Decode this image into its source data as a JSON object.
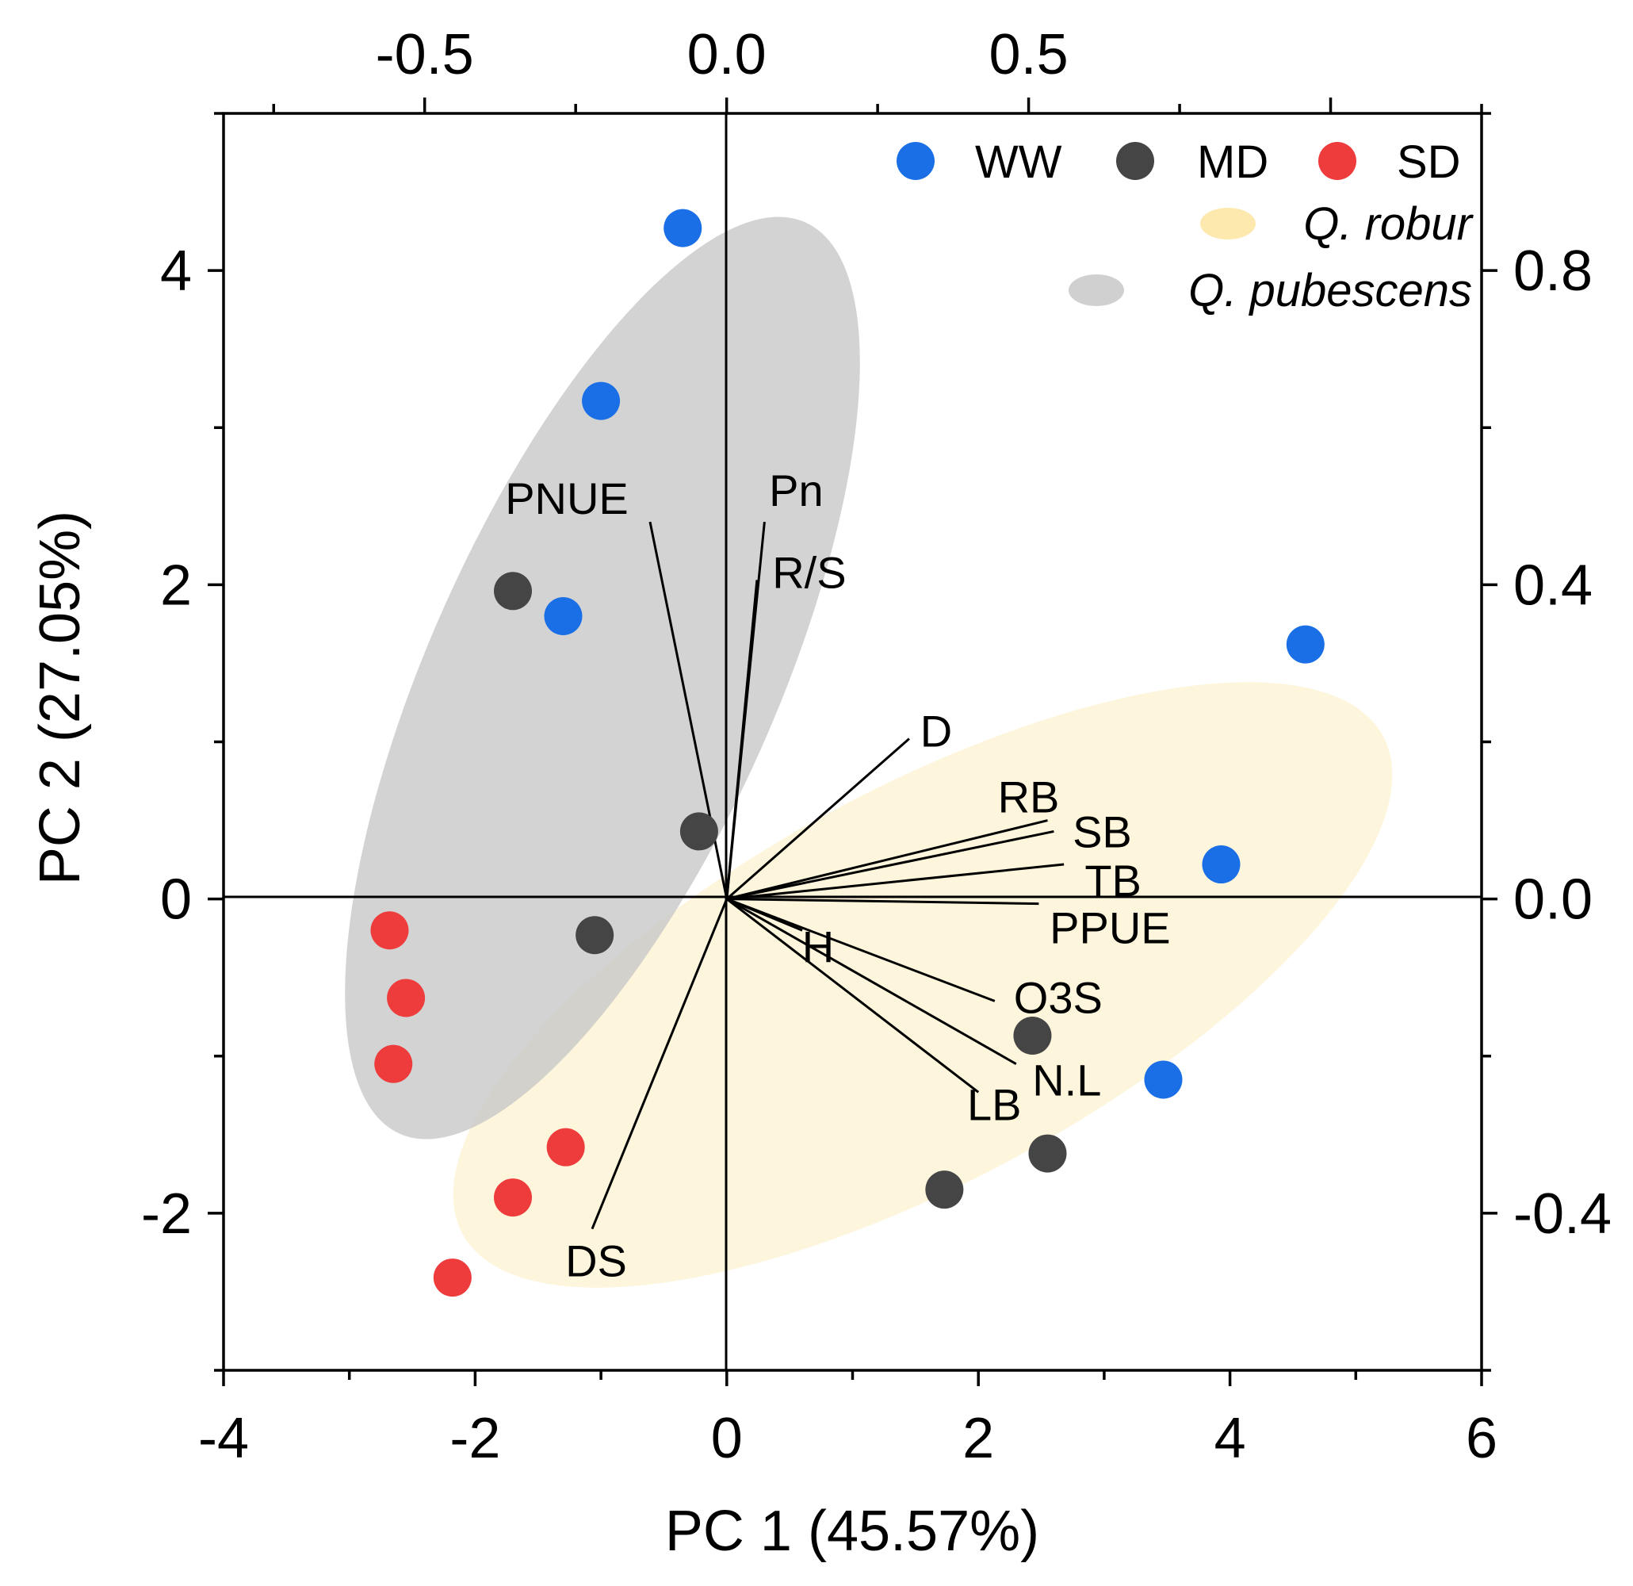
{
  "chart_data": {
    "type": "scatter",
    "subtype": "pca-biplot",
    "xlabel": "PC 1 (45.57%)",
    "ylabel": "PC 2 (27.05%)",
    "xlim": [
      -4,
      6
    ],
    "ylim": [
      -3,
      5
    ],
    "x_ticks": [
      "-4",
      "-2",
      "0",
      "2",
      "4",
      "6"
    ],
    "y_ticks": [
      "-2",
      "0",
      "2",
      "4"
    ],
    "top_axis": {
      "lim": [
        -0.833,
        1.25
      ],
      "ticks": [
        "-0.5",
        "0.0",
        "0.5"
      ]
    },
    "right_axis": {
      "lim": [
        -0.6,
        1.0
      ],
      "ticks": [
        "-0.4",
        "0.0",
        "0.4",
        "0.8"
      ]
    },
    "groups": [
      {
        "name": "WW",
        "color": "#1a6ee6"
      },
      {
        "name": "MD",
        "color": "#454545"
      },
      {
        "name": "SD",
        "color": "#ee3b3b"
      }
    ],
    "species": [
      {
        "name": "Q. robur",
        "color": "#fdf1cc"
      },
      {
        "name": "Q. pubescens",
        "color": "#cccccc"
      }
    ],
    "points": [
      {
        "group": "WW",
        "x": -0.35,
        "y": 4.27
      },
      {
        "group": "WW",
        "x": -1.0,
        "y": 3.17
      },
      {
        "group": "WW",
        "x": -1.3,
        "y": 1.8
      },
      {
        "group": "WW",
        "x": 4.6,
        "y": 1.62
      },
      {
        "group": "WW",
        "x": 3.93,
        "y": 0.22
      },
      {
        "group": "WW",
        "x": 3.47,
        "y": -1.15
      },
      {
        "group": "MD",
        "x": -1.7,
        "y": 1.96
      },
      {
        "group": "MD",
        "x": -0.22,
        "y": 0.43
      },
      {
        "group": "MD",
        "x": -1.05,
        "y": -0.23
      },
      {
        "group": "MD",
        "x": 2.43,
        "y": -0.87
      },
      {
        "group": "MD",
        "x": 2.55,
        "y": -1.62
      },
      {
        "group": "MD",
        "x": 1.73,
        "y": -1.85
      },
      {
        "group": "SD",
        "x": -2.68,
        "y": -0.2
      },
      {
        "group": "SD",
        "x": -2.55,
        "y": -0.63
      },
      {
        "group": "SD",
        "x": -2.65,
        "y": -1.05
      },
      {
        "group": "SD",
        "x": -1.28,
        "y": -1.58
      },
      {
        "group": "SD",
        "x": -1.7,
        "y": -1.9
      },
      {
        "group": "SD",
        "x": -2.18,
        "y": -2.41
      }
    ],
    "loadings": [
      {
        "name": "PNUE",
        "x": -0.61,
        "y": 2.4
      },
      {
        "name": "Pn",
        "x": 0.3,
        "y": 2.4
      },
      {
        "name": "R/S",
        "x": 0.24,
        "y": 2.03
      },
      {
        "name": "D",
        "x": 1.45,
        "y": 1.02
      },
      {
        "name": "RB",
        "x": 2.55,
        "y": 0.5
      },
      {
        "name": "SB",
        "x": 2.6,
        "y": 0.43
      },
      {
        "name": "TB",
        "x": 2.68,
        "y": 0.22
      },
      {
        "name": "PPUE",
        "x": 2.48,
        "y": -0.03
      },
      {
        "name": "H",
        "x": 0.6,
        "y": -0.2
      },
      {
        "name": "O3S",
        "x": 2.13,
        "y": -0.65
      },
      {
        "name": "N.L",
        "x": 2.3,
        "y": -1.05
      },
      {
        "name": "LB",
        "x": 2.0,
        "y": -1.23
      },
      {
        "name": "DS",
        "x": -1.07,
        "y": -2.1
      }
    ]
  }
}
